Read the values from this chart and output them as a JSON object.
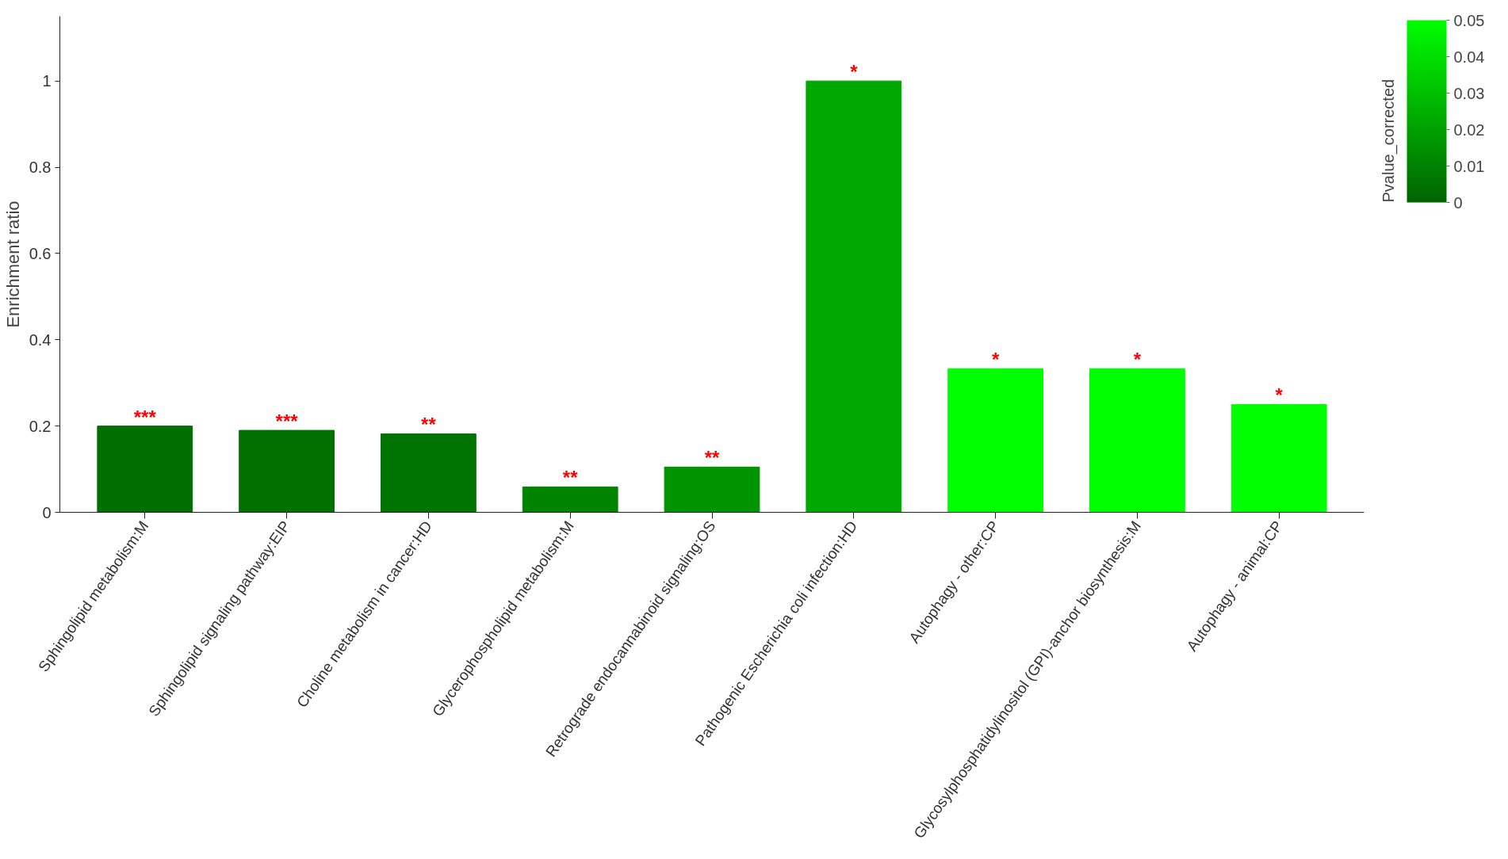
{
  "chart_data": {
    "type": "bar",
    "ylabel": "Enrichment ratio",
    "clabel": "Pvalue_corrected",
    "categories": [
      "Sphingolipid metabolism:M",
      "Sphingolipid signaling pathway:EIP",
      "Choline metabolism in cancer:HD",
      "Glycerophospholipid metabolism:M",
      "Retrograde endocannabinoid signaling:OS",
      "Pathogenic Escherichia coli infection:HD",
      "Autophagy - other:CP",
      "Glycosylphosphatidylinositol (GPI)-anchor biosynthesis:M",
      "Autophagy - animal:CP"
    ],
    "values": [
      0.2,
      0.19,
      0.182,
      0.059,
      0.105,
      1.0,
      0.333,
      0.333,
      0.25
    ],
    "colors": [
      "#006e00",
      "#007000",
      "#007400",
      "#008400",
      "#009400",
      "#00a800",
      "#00ff00",
      "#00ff00",
      "#00ff00"
    ],
    "ylim": [
      0,
      1.15
    ],
    "yticks": [
      0,
      0.2,
      0.4,
      0.6,
      0.8,
      1
    ],
    "clim": [
      0,
      0.05
    ],
    "cticks": [
      0,
      0.01,
      0.02,
      0.03,
      0.04,
      0.05
    ],
    "annotations": [
      {
        "text": "***",
        "x": "Sphingolipid metabolism:M",
        "y": 0.2
      },
      {
        "text": "***",
        "x": "Sphingolipid signaling pathway:EIP",
        "y": 0.19
      },
      {
        "text": "**",
        "x": "Choline metabolism in cancer:HD",
        "y": 0.182
      },
      {
        "text": "**",
        "x": "Glycerophospholipid metabolism:M",
        "y": 0.059
      },
      {
        "text": "**",
        "x": "Retrograde endocannabinoid signaling:OS",
        "y": 0.105
      },
      {
        "text": "*",
        "x": "Pathogenic Escherichia coli infection:HD",
        "y": 1.0
      },
      {
        "text": "*",
        "x": "Autophagy - other:CP",
        "y": 0.333
      },
      {
        "text": "*",
        "x": "Glycosylphosphatidylinositol (GPI)-anchor biosynthesis:M",
        "y": 0.333
      },
      {
        "text": "*",
        "x": "Autophagy - animal:CP",
        "y": 0.25
      }
    ],
    "grid": false
  }
}
